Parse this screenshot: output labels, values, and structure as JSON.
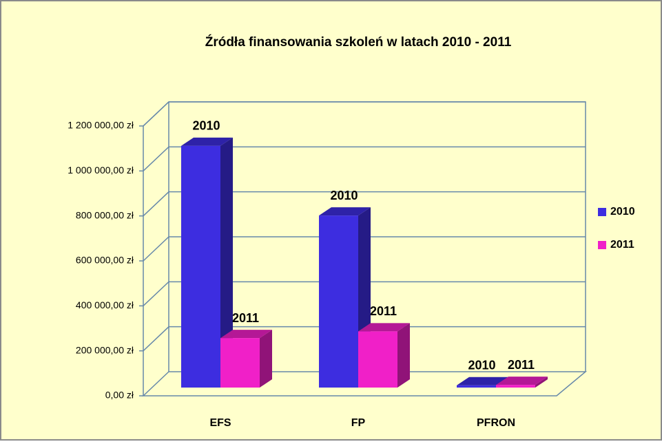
{
  "chart_data": {
    "type": "bar3d",
    "title": "Źródła finansowania szkoleń w latach 2010 - 2011",
    "categories": [
      "EFS",
      "FP",
      "PFRON"
    ],
    "series": [
      {
        "name": "2010",
        "color": "#3d2de0",
        "values": [
          1075000,
          765000,
          10000
        ]
      },
      {
        "name": "2011",
        "color": "#f020c8",
        "values": [
          220000,
          250000,
          12000
        ]
      }
    ],
    "ylim": [
      0,
      1200000
    ],
    "yticks": [
      {
        "value": 0,
        "label": "0,00 zł"
      },
      {
        "value": 200000,
        "label": "200 000,00 zł"
      },
      {
        "value": 400000,
        "label": "400 000,00 zł"
      },
      {
        "value": 600000,
        "label": "600 000,00 zł"
      },
      {
        "value": 800000,
        "label": "800 000,00 zł"
      },
      {
        "value": 1000000,
        "label": "1 000 000,00 zł"
      },
      {
        "value": 1200000,
        "label": "1 200 000,00 zł"
      }
    ],
    "grid": true,
    "legend": "right"
  }
}
